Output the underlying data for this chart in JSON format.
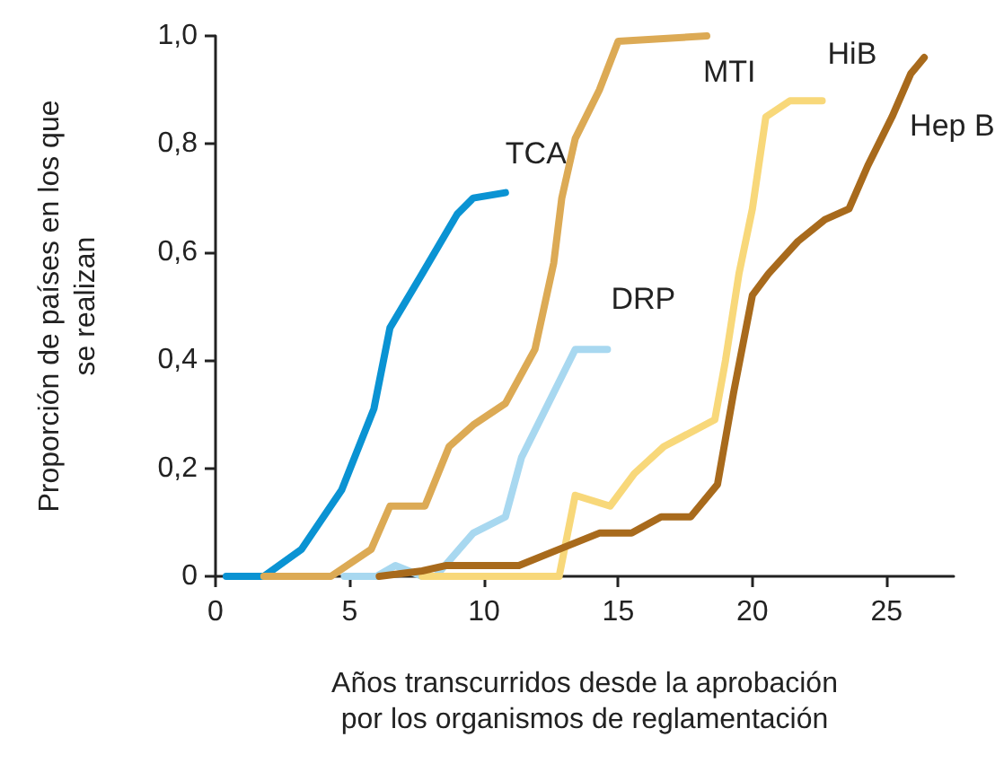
{
  "chart_data": {
    "type": "line",
    "xlabel": "Años transcurridos desde la aprobación\npor los organismos de reglamentación",
    "ylabel": "Proporción de países en los que\nse realizan",
    "xlim": [
      0,
      27.5
    ],
    "xticks": [
      0,
      5,
      10,
      15,
      20,
      25
    ],
    "ylim": [
      0,
      1
    ],
    "yticks": [
      0,
      {
        "value": 0.2,
        "label": "0,2"
      },
      {
        "value": 0.4,
        "label": "0,4"
      },
      {
        "value": 0.6,
        "label": "0,6"
      },
      {
        "value": 0.8,
        "label": "0,8"
      },
      {
        "value": 1,
        "label": "1,0"
      }
    ],
    "grid": false,
    "legend": false,
    "marker": "none",
    "line_style": "solid",
    "series": [
      {
        "name": "TCA",
        "color": "#0a93d3",
        "x": [
          0.4,
          1.8,
          3.2,
          4.7,
          5.9,
          6.5,
          7.7,
          9.0,
          9.6,
          10.8
        ],
        "values": [
          0,
          0,
          0.05,
          0.16,
          0.31,
          0.46,
          0.56,
          0.67,
          0.7,
          0.71
        ]
      },
      {
        "name": "MTI",
        "color": "#dcaa55",
        "x": [
          1.8,
          4.3,
          5.8,
          6.5,
          7.8,
          8.7,
          9.6,
          10.8,
          11.9,
          12.6,
          12.9,
          13.4,
          14.3,
          15.0,
          18.3
        ],
        "values": [
          0,
          0,
          0.05,
          0.13,
          0.13,
          0.24,
          0.28,
          0.32,
          0.42,
          0.58,
          0.7,
          0.81,
          0.9,
          0.99,
          1.0
        ]
      },
      {
        "name": "DRP",
        "color": "#a8d8f0",
        "x": [
          4.8,
          6.0,
          6.7,
          7.7,
          8.2,
          9.6,
          10.8,
          11.4,
          13.4,
          14.6
        ],
        "values": [
          0,
          0,
          0.02,
          0,
          0,
          0.08,
          0.11,
          0.22,
          0.42,
          0.42
        ]
      },
      {
        "name": "HiB",
        "color": "#f8d87a",
        "x": [
          7.7,
          12.8,
          13.4,
          14.7,
          15.6,
          16.7,
          18.6,
          19.0,
          19.5,
          20.0,
          20.5,
          21.4,
          22.6
        ],
        "values": [
          0,
          0,
          0.15,
          0.13,
          0.19,
          0.24,
          0.29,
          0.4,
          0.56,
          0.68,
          0.85,
          0.88,
          0.88
        ]
      },
      {
        "name": "Hep B",
        "color": "#a86a1c",
        "x": [
          6.1,
          7.7,
          8.6,
          11.3,
          12.8,
          14.3,
          15.5,
          16.6,
          17.7,
          18.7,
          19.3,
          20.0,
          20.6,
          21.7,
          22.7,
          23.6,
          24.3,
          25.2,
          25.9,
          26.4
        ],
        "values": [
          0,
          0.01,
          0.02,
          0.02,
          0.05,
          0.08,
          0.08,
          0.11,
          0.11,
          0.17,
          0.34,
          0.52,
          0.56,
          0.62,
          0.66,
          0.68,
          0.76,
          0.85,
          0.93,
          0.96
        ]
      }
    ]
  }
}
